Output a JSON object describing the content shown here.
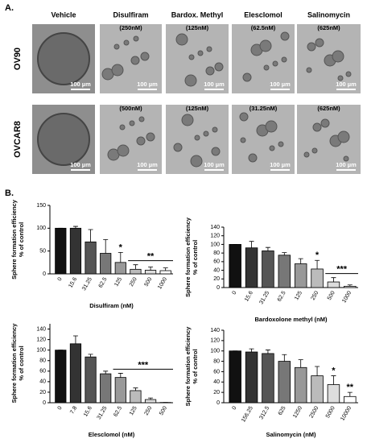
{
  "panel_a": {
    "label": "A.",
    "columns": [
      "Vehicle",
      "Disulfiram",
      "Bardox. Methyl",
      "Elesclomol",
      "Salinomycin"
    ],
    "rows": [
      {
        "name": "OV90",
        "doses": [
          "(250nM)",
          "(125nM)",
          "(62.5nM)",
          "(625nM)"
        ]
      },
      {
        "name": "OVCAR8",
        "doses": [
          "(500nM)",
          "(125nM)",
          "(31.25nM)",
          "(625nM)"
        ]
      }
    ],
    "scale_bar": "100 µm"
  },
  "panel_b_label": "B.",
  "chart_data": [
    {
      "type": "bar",
      "xlabel": "Disulfiram (nM)",
      "ylabel": [
        "Sphere formation efficiency",
        "% of control"
      ],
      "categories": [
        "0",
        "15.6",
        "31.25",
        "62.5",
        "125",
        "250",
        "500",
        "1000"
      ],
      "values": [
        100,
        100,
        70,
        45,
        25,
        10,
        8,
        7
      ],
      "error": [
        0,
        4,
        27,
        30,
        22,
        10,
        7,
        6
      ],
      "colors": [
        "#111111",
        "#333333",
        "#555555",
        "#777777",
        "#999999",
        "#bbbbbb",
        "#dddddd",
        "#ffffff"
      ],
      "ylim": [
        0,
        150
      ],
      "yticks": [
        0,
        50,
        100,
        150
      ],
      "annotations": [
        {
          "text": "*",
          "at": "125"
        },
        {
          "text": "**",
          "from": "250",
          "to": "1000"
        }
      ]
    },
    {
      "type": "bar",
      "xlabel": "Bardoxolone methyl (nM)",
      "ylabel": [
        "Sphere formation efficiency",
        "% of control"
      ],
      "categories": [
        "0",
        "15.6",
        "31.25",
        "62.5",
        "125",
        "250",
        "500",
        "1000"
      ],
      "values": [
        100,
        92,
        85,
        75,
        55,
        43,
        13,
        3
      ],
      "error": [
        0,
        15,
        8,
        6,
        12,
        20,
        10,
        3
      ],
      "colors": [
        "#111111",
        "#333333",
        "#555555",
        "#777777",
        "#999999",
        "#bbbbbb",
        "#dddddd",
        "#ffffff"
      ],
      "ylim": [
        0,
        140
      ],
      "yticks": [
        0,
        20,
        40,
        60,
        80,
        100,
        120,
        140
      ],
      "annotations": [
        {
          "text": "*",
          "at": "250"
        },
        {
          "text": "***",
          "from": "500",
          "to": "1000"
        }
      ]
    },
    {
      "type": "bar",
      "xlabel": "Elesclomol (nM)",
      "ylabel": [
        "Sphere formation efficiency",
        "% of control"
      ],
      "categories": [
        "0",
        "7.8",
        "15.6",
        "31.25",
        "62.5",
        "125",
        "250",
        "500"
      ],
      "values": [
        100,
        112,
        87,
        55,
        48,
        23,
        6,
        0.5
      ],
      "error": [
        0,
        15,
        5,
        5,
        8,
        5,
        3,
        0
      ],
      "colors": [
        "#111111",
        "#333333",
        "#555555",
        "#777777",
        "#999999",
        "#bbbbbb",
        "#dddddd",
        "#ffffff"
      ],
      "ylim": [
        0,
        150
      ],
      "yticks": [
        0,
        20,
        40,
        60,
        80,
        100,
        120,
        140
      ],
      "annotations": [
        {
          "text": "***",
          "from": "62.5",
          "to": "500"
        }
      ]
    },
    {
      "type": "bar",
      "xlabel": "Salinomycin (nM)",
      "ylabel": [
        "Sphere formation efficiency",
        "% of control"
      ],
      "categories": [
        "0",
        "156.25",
        "312.5",
        "625",
        "1250",
        "2500",
        "5000",
        "10000"
      ],
      "values": [
        100,
        98,
        95,
        80,
        68,
        52,
        35,
        12
      ],
      "error": [
        0,
        6,
        7,
        13,
        15,
        18,
        17,
        8
      ],
      "colors": [
        "#111111",
        "#333333",
        "#555555",
        "#777777",
        "#999999",
        "#bbbbbb",
        "#dddddd",
        "#ffffff"
      ],
      "ylim": [
        0,
        140
      ],
      "yticks": [
        0,
        20,
        40,
        60,
        80,
        100,
        120,
        140
      ],
      "annotations": [
        {
          "text": "*",
          "at": "5000"
        },
        {
          "text": "**",
          "at": "10000"
        }
      ]
    }
  ]
}
